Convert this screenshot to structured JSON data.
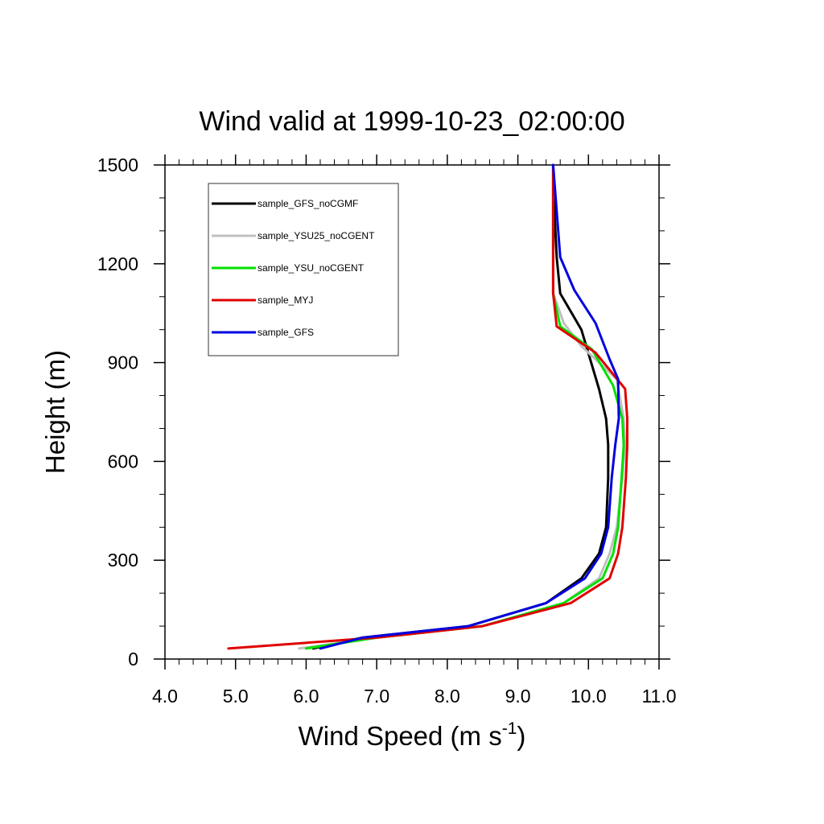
{
  "chart_data": {
    "type": "line",
    "title": "Wind valid at 1999-10-23_02:00:00",
    "xlabel": "Wind Speed (m s",
    "xlabel_sup": "-1",
    "xlabel_end": ")",
    "ylabel": "Height (m)",
    "xlim": [
      4.0,
      11.0
    ],
    "ylim": [
      0,
      1500
    ],
    "x_ticks": [
      4.0,
      5.0,
      6.0,
      7.0,
      8.0,
      9.0,
      10.0,
      11.0
    ],
    "x_tick_labels": [
      "4.0",
      "5.0",
      "6.0",
      "7.0",
      "8.0",
      "9.0",
      "10.0",
      "11.0"
    ],
    "y_ticks": [
      0,
      300,
      600,
      900,
      1200,
      1500
    ],
    "y_tick_labels": [
      "0",
      "300",
      "600",
      "900",
      "1200",
      "1500"
    ],
    "grid": false,
    "legend_position": "top-left",
    "series": [
      {
        "name": "sample_GFS_noCGMF",
        "color": "#000000",
        "x": [
          6.1,
          6.8,
          8.3,
          9.4,
          9.9,
          10.15,
          10.25,
          10.28,
          10.28,
          10.25,
          10.15,
          9.9,
          9.6,
          9.55,
          9.52,
          9.5
        ],
        "y": [
          32,
          65,
          100,
          170,
          245,
          320,
          400,
          550,
          650,
          730,
          820,
          1000,
          1110,
          1220,
          1350,
          1500
        ]
      },
      {
        "name": "sample_YSU25_noCGENT",
        "color": "#c0c0c0",
        "x": [
          5.9,
          7.0,
          8.5,
          9.65,
          10.15,
          10.3,
          10.4,
          10.48,
          10.52,
          10.5,
          10.4,
          9.9,
          9.65,
          9.5,
          9.5,
          9.5
        ],
        "y": [
          32,
          65,
          100,
          170,
          245,
          320,
          400,
          550,
          650,
          730,
          850,
          950,
          1020,
          1110,
          1200,
          1500
        ]
      },
      {
        "name": "sample_YSU_noCGENT",
        "color": "#00e000",
        "x": [
          6.0,
          7.0,
          8.5,
          9.65,
          10.2,
          10.35,
          10.42,
          10.47,
          10.5,
          10.48,
          10.35,
          10.05,
          9.6,
          9.5,
          9.5,
          9.5
        ],
        "y": [
          32,
          65,
          100,
          170,
          245,
          320,
          400,
          550,
          650,
          730,
          830,
          940,
          1010,
          1110,
          1200,
          1500
        ]
      },
      {
        "name": "sample_MYJ",
        "color": "#e00000",
        "x": [
          4.9,
          7.0,
          8.5,
          9.75,
          10.3,
          10.42,
          10.48,
          10.53,
          10.55,
          10.55,
          10.52,
          10.1,
          9.55,
          9.5,
          9.5,
          9.5
        ],
        "y": [
          32,
          65,
          100,
          170,
          245,
          320,
          400,
          550,
          650,
          730,
          820,
          930,
          1010,
          1110,
          1200,
          1500
        ]
      },
      {
        "name": "sample_GFS",
        "color": "#0000e0",
        "x": [
          6.2,
          6.8,
          8.3,
          9.4,
          9.95,
          10.18,
          10.28,
          10.33,
          10.38,
          10.43,
          10.42,
          10.3,
          10.1,
          9.8,
          9.6,
          9.5
        ],
        "y": [
          32,
          65,
          100,
          170,
          245,
          320,
          400,
          550,
          650,
          730,
          850,
          910,
          1020,
          1120,
          1220,
          1500
        ]
      }
    ]
  }
}
